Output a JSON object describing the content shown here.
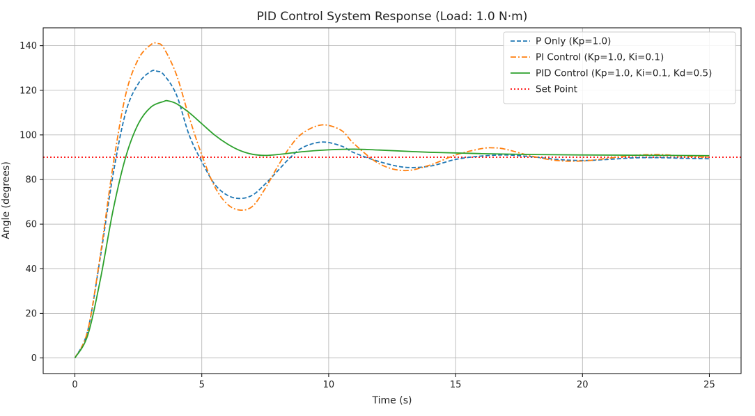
{
  "chart_data": {
    "type": "line",
    "title": "PID Control System Response (Load: 1.0 N·m)",
    "xlabel": "Time (s)",
    "ylabel": "Angle (degrees)",
    "xlim": [
      -1.25,
      26.25
    ],
    "ylim": [
      -7,
      148
    ],
    "x_ticks": [
      0,
      5,
      10,
      15,
      20,
      25
    ],
    "y_ticks": [
      0,
      20,
      40,
      60,
      80,
      100,
      120,
      140
    ],
    "grid": true,
    "legend_position": "top-right",
    "set_point": 90,
    "series": [
      {
        "name": "P Only (Kp=1.0)",
        "color": "#1f77b4",
        "dash": "dashed",
        "x": [
          0,
          0.5,
          1,
          1.5,
          2,
          2.5,
          3,
          3.25,
          3.5,
          4,
          4.5,
          5,
          5.5,
          6,
          6.5,
          7,
          7.5,
          8,
          8.5,
          9,
          9.75,
          10.5,
          11,
          12,
          13,
          14,
          15,
          16,
          17,
          18,
          19,
          20,
          21,
          22,
          23,
          24,
          25
        ],
        "y": [
          0,
          12,
          45,
          82,
          110,
          123,
          128.5,
          128.5,
          127,
          118,
          100,
          88,
          78,
          73,
          71.5,
          73,
          78,
          84,
          90,
          94.5,
          96.8,
          95,
          92,
          88,
          85.5,
          86,
          89,
          90.5,
          91,
          90.2,
          89,
          88.5,
          89,
          89.7,
          89.8,
          89.5,
          89.3
        ]
      },
      {
        "name": "PI Control (Kp=1.0, Ki=0.1)",
        "color": "#ff7f0e",
        "dash": "dashdot",
        "x": [
          0,
          0.5,
          1,
          1.5,
          2,
          2.5,
          3,
          3.25,
          3.5,
          4,
          4.5,
          5,
          5.5,
          6,
          6.5,
          7,
          7.5,
          8,
          8.5,
          9,
          9.75,
          10.5,
          11,
          12,
          13,
          14,
          15,
          16,
          16.5,
          17,
          18,
          19,
          20,
          21,
          22,
          23,
          24,
          25
        ],
        "y": [
          0,
          12,
          46,
          86,
          118,
          134,
          140.5,
          141,
          139,
          127,
          108,
          91,
          77,
          69,
          66.3,
          68,
          76,
          86,
          95,
          101,
          104.5,
          102,
          96,
          87,
          84,
          86.5,
          91,
          93.8,
          94.2,
          93.5,
          90.5,
          88.5,
          88.3,
          89.5,
          90.8,
          91.2,
          90.5,
          90
        ]
      },
      {
        "name": "PID Control (Kp=1.0, Ki=0.1, Kd=0.5)",
        "color": "#2ca02c",
        "dash": "solid",
        "x": [
          0,
          0.5,
          1,
          1.5,
          2,
          2.5,
          3,
          3.5,
          3.65,
          4,
          4.5,
          5,
          5.5,
          6,
          6.5,
          7,
          7.5,
          8,
          9,
          10,
          11,
          12,
          14,
          16,
          18,
          20,
          22,
          25
        ],
        "y": [
          0,
          10,
          35,
          66,
          90,
          105,
          112.5,
          115,
          115.3,
          114,
          110,
          105,
          100,
          96,
          93,
          91.3,
          90.8,
          91.2,
          92.5,
          93.3,
          93.6,
          93.2,
          92.2,
          91.6,
          91.2,
          91,
          90.9,
          90.7
        ]
      },
      {
        "name": "Set Point",
        "color": "#ff0000",
        "dash": "dotted",
        "x": [
          -1.25,
          26.25
        ],
        "y": [
          90,
          90
        ]
      }
    ]
  }
}
